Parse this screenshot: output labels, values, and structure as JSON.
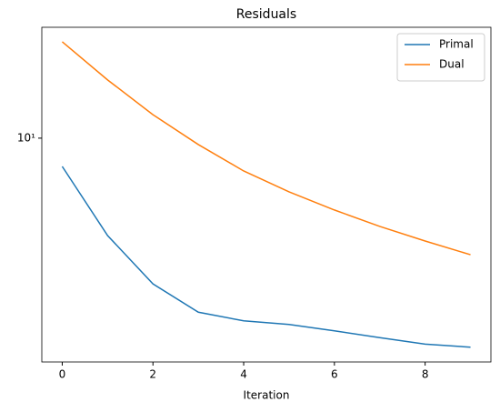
{
  "chart_data": {
    "type": "line",
    "title": "Residuals",
    "xlabel": "Iteration",
    "x": [
      0,
      1,
      2,
      3,
      4,
      5,
      6,
      7,
      8,
      9
    ],
    "series": [
      {
        "name": "Primal",
        "color": "#1f77b4",
        "values": [
          7.64,
          3.96,
          2.5,
          1.91,
          1.76,
          1.7,
          1.6,
          1.5,
          1.41,
          1.37
        ]
      },
      {
        "name": "Dual",
        "color": "#ff7f0e",
        "values": [
          25.0,
          17.4,
          12.5,
          9.41,
          7.32,
          6.0,
          5.05,
          4.32,
          3.76,
          3.3
        ]
      }
    ],
    "xlim": [
      -0.45,
      9.45
    ],
    "xticks": [
      0,
      2,
      4,
      6,
      8
    ],
    "ylim": [
      1.19,
      28.7
    ],
    "yticks": [
      {
        "value": 10,
        "label": "10¹"
      }
    ],
    "ylog": true,
    "legend": "upper right"
  }
}
